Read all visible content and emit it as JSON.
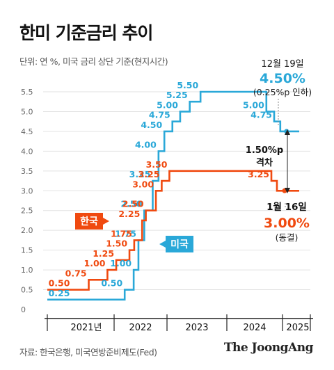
{
  "title": "한미 기준금리 추이",
  "subtitle": "단위: 연 %, 미국 금리 상단 기준(현지시간)",
  "source": "자료: 한국은행, 미국연방준비제도(Fed)",
  "brand": "The JoongAng",
  "colors": {
    "us": "#2aa8d8",
    "korea": "#f04a10",
    "text": "#111111",
    "muted": "#555555"
  },
  "chart_data": {
    "type": "line",
    "step": true,
    "ylim": [
      0,
      5.5
    ],
    "yticks": [
      "0",
      "0.5",
      "1.0",
      "1.5",
      "2.0",
      "2.5",
      "3.0",
      "3.5",
      "4.0",
      "4.5",
      "5.0",
      "5.5"
    ],
    "xticks": [
      "2021년",
      "2022",
      "2023",
      "2024",
      "2025"
    ],
    "grid": true,
    "series": [
      {
        "name": "미국",
        "color": "#2aa8d8",
        "x": [
          2021.0,
          2022.2,
          2022.37,
          2022.46,
          2022.57,
          2022.73,
          2022.84,
          2022.95,
          2023.09,
          2023.22,
          2023.38,
          2023.56,
          2024.71,
          2024.85,
          2024.96,
          2025.12
        ],
        "values": [
          0.25,
          0.5,
          1.0,
          1.75,
          2.5,
          3.25,
          4.0,
          4.5,
          4.75,
          5.0,
          5.25,
          5.5,
          5.0,
          4.75,
          4.5,
          4.5
        ],
        "labels": [
          "0.25",
          "0.50",
          "1.00",
          "1.75",
          "2.50",
          "3.25",
          "4.00",
          "4.50",
          "4.75",
          "5.00",
          "5.25",
          "5.50",
          "5.00",
          "4.75"
        ]
      },
      {
        "name": "한국",
        "color": "#f04a10",
        "x": [
          2021.0,
          2021.62,
          2021.9,
          2022.04,
          2022.29,
          2022.38,
          2022.53,
          2022.6,
          2022.79,
          2022.9,
          2023.04,
          2024.8,
          2024.9,
          2025.12
        ],
        "values": [
          0.5,
          0.75,
          1.0,
          1.25,
          1.5,
          1.75,
          2.25,
          2.5,
          3.0,
          3.25,
          3.5,
          3.25,
          3.0,
          3.0
        ],
        "labels": [
          "0.50",
          "0.75",
          "1.00",
          "1.25",
          "1.50",
          "1.75",
          "2.25",
          "2.50",
          "3.00",
          "3.25",
          "3.50",
          "3.25"
        ]
      }
    ],
    "legend_tags": {
      "korea": "한국",
      "us": "미국"
    },
    "annotations": {
      "us_date": "12월 19일",
      "us_value": "4.50%",
      "us_note": "(0.25%p 인하)",
      "korea_date": "1월 16일",
      "korea_value": "3.00%",
      "korea_note": "(동결)",
      "gap_value": "1.50%p",
      "gap_label": "격차"
    }
  }
}
